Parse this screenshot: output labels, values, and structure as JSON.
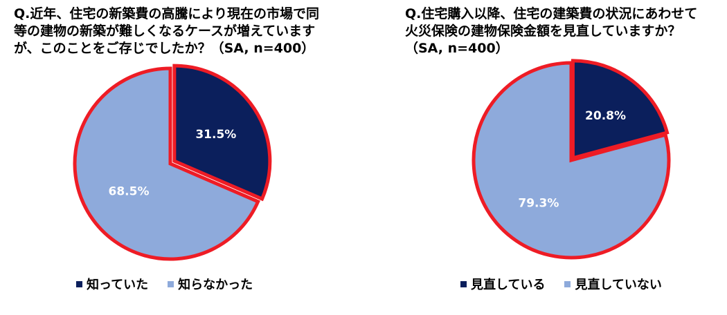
{
  "colors": {
    "dark": "#0b1f5c",
    "light": "#8eaadb",
    "outline": "#ee1c25",
    "dark_label": "#ffffff",
    "light_label": "#ffffff"
  },
  "chart_data": [
    {
      "type": "pie",
      "title_lines": [
        "Q.近年、住宅の新築費の高騰により現在の市場で同",
        "等の建物の新築が難しくなるケースが増えています",
        "が、このことをご存じでしたか？（SA, n=400）"
      ],
      "slices": [
        {
          "name": "知っていた",
          "value": 31.5,
          "label": "31.5%",
          "color": "#0b1f5c"
        },
        {
          "name": "知らなかった",
          "value": 68.5,
          "label": "68.5%",
          "color": "#8eaadb"
        }
      ],
      "legend": [
        "知っていた",
        "知らなかった"
      ],
      "legend_position": "bottom"
    },
    {
      "type": "pie",
      "title_lines": [
        "Q.住宅購入以降、住宅の建築費の状況にあわせて",
        "火災保険の建物保険金額を見直していますか？",
        "（SA, n=400）"
      ],
      "slices": [
        {
          "name": "見直している",
          "value": 20.8,
          "label": "20.8%",
          "color": "#0b1f5c"
        },
        {
          "name": "見直していない",
          "value": 79.3,
          "label": "79.3%",
          "color": "#8eaadb"
        }
      ],
      "legend": [
        "見直している",
        "見直していない"
      ],
      "legend_position": "bottom"
    }
  ]
}
